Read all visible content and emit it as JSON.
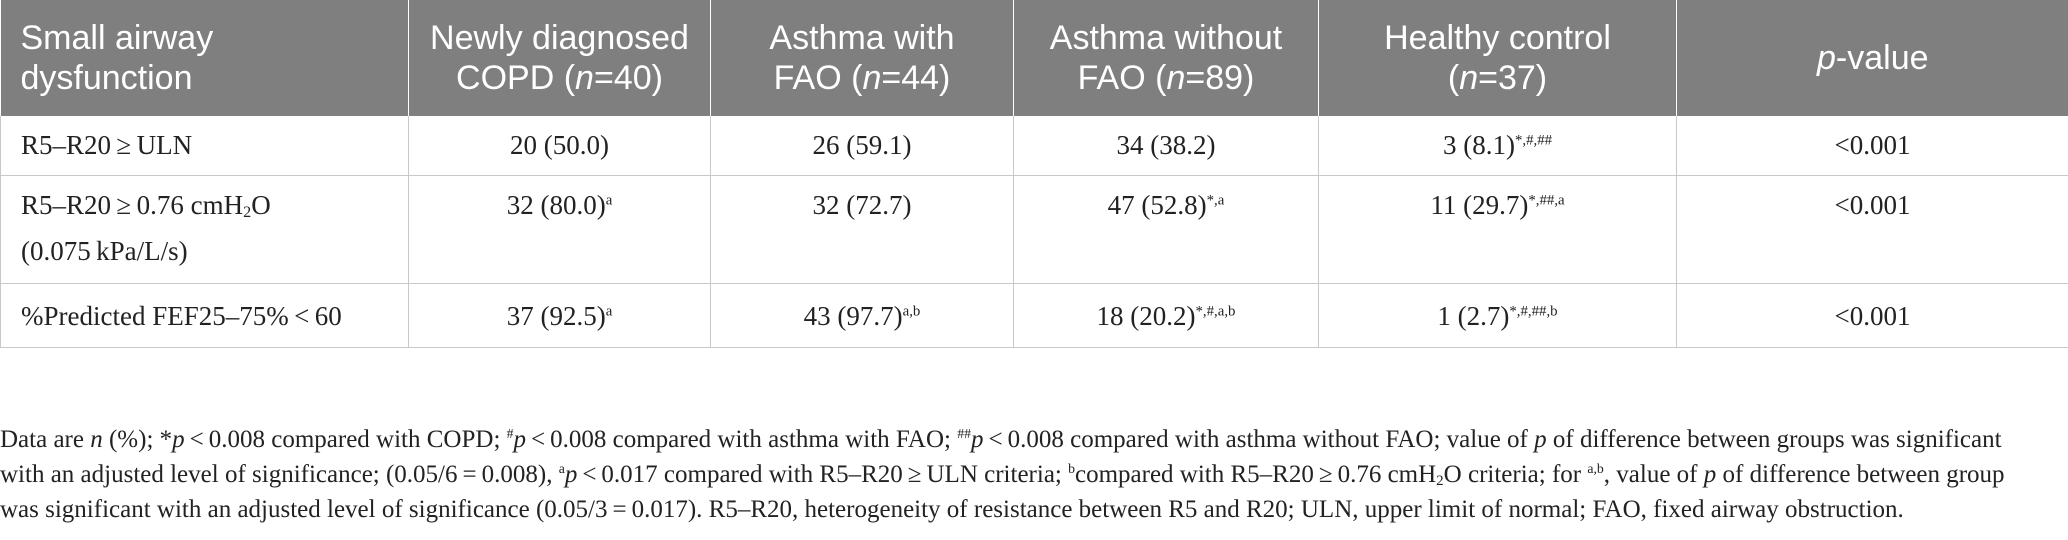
{
  "table": {
    "headers": [
      {
        "pre": "Small airway dysfunction",
        "ital": "",
        "post": ""
      },
      {
        "pre": "Newly diagnosed COPD (",
        "ital": "n",
        "post": "=40)"
      },
      {
        "pre": "Asthma with FAO (",
        "ital": "n",
        "post": "=44)"
      },
      {
        "pre": "Asthma without FAO (",
        "ital": "n",
        "post": "=89)"
      },
      {
        "pre": "Healthy control (",
        "ital": "n",
        "post": "=37)"
      },
      {
        "pre": "",
        "ital": "p",
        "post": "-value"
      }
    ],
    "rows": [
      {
        "label": "R5–R20 ≥ ULN",
        "cells": [
          {
            "v": "20 (50.0)",
            "s": ""
          },
          {
            "v": "26 (59.1)",
            "s": ""
          },
          {
            "v": "34 (38.2)",
            "s": ""
          },
          {
            "v": "3 (8.1)",
            "s": "*,#,##"
          },
          {
            "v": "<0.001",
            "s": ""
          }
        ]
      },
      {
        "label_a": "R5–R20 ≥ 0.76 cmH",
        "label_sub": "2",
        "label_b": "O",
        "label_line2": "(0.075 kPa/L/s)",
        "cells": [
          {
            "v": "32 (80.0)",
            "s": "a"
          },
          {
            "v": "32 (72.7)",
            "s": ""
          },
          {
            "v": "47 (52.8)",
            "s": "*,a"
          },
          {
            "v": "11 (29.7)",
            "s": "*,##,a"
          },
          {
            "v": "<0.001",
            "s": ""
          }
        ]
      },
      {
        "label": "%Predicted FEF25–75% < 60",
        "cells": [
          {
            "v": "37 (92.5)",
            "s": "a"
          },
          {
            "v": "43 (97.7)",
            "s": "a,b"
          },
          {
            "v": "18 (20.2)",
            "s": "*,#,a,b"
          },
          {
            "v": "1 (2.7)",
            "s": "*,#,##,b"
          },
          {
            "v": "<0.001",
            "s": ""
          }
        ]
      }
    ]
  },
  "footnote": {
    "f1": "Data are ",
    "f2": "n",
    "f3": " (%); *",
    "f4": "p",
    "f5": " < 0.008 compared with COPD; ",
    "f6": "#",
    "f7": "p",
    "f8": " < 0.008 compared with asthma with FAO; ",
    "f9": "##",
    "f10": "p",
    "f11": " < 0.008 compared with asthma without FAO; value of ",
    "f12": "p",
    "f13": " of difference between groups was significant with an adjusted level of significance; (0.05/6 = 0.008), ",
    "f14": "a",
    "f15": "p",
    "f16": " < 0.017 compared with R5–R20 ≥ ULN criteria; ",
    "f17": "b",
    "f18": "compared with R5–R20 ≥ 0.76 cmH",
    "f19": "2",
    "f20": "O criteria; for ",
    "f21": "a,b",
    "f22": ", value of ",
    "f23": "p",
    "f24": " of difference between group was significant with an adjusted level of significance (0.05/3 = 0.017). R5–R20, heterogeneity of resistance between R5 and R20; ULN, upper limit of normal; FAO, fixed airway obstruction."
  }
}
